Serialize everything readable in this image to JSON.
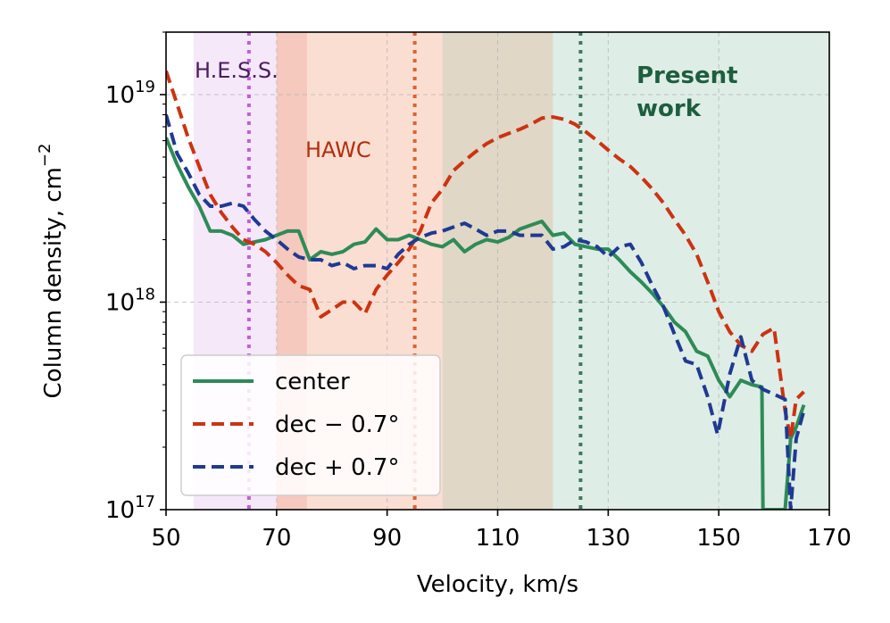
{
  "chart_data": {
    "type": "line",
    "title": "",
    "xlabel": "Velocity, km/s",
    "ylabel": "Column density, cm",
    "ylabel_exponent": "−2",
    "xlim": [
      50,
      170
    ],
    "ylim": [
      1e+17,
      2e+19
    ],
    "yscale": "log",
    "grid": true,
    "x_ticks": [
      {
        "value": 50,
        "label": "50"
      },
      {
        "value": 70,
        "label": "70"
      },
      {
        "value": 90,
        "label": "90"
      },
      {
        "value": 110,
        "label": "110"
      },
      {
        "value": 130,
        "label": "130"
      },
      {
        "value": 150,
        "label": "150"
      },
      {
        "value": 170,
        "label": "170"
      }
    ],
    "y_ticks": [
      {
        "value": 1e+17,
        "base": "10",
        "exp": "17"
      },
      {
        "value": 1e+18,
        "base": "10",
        "exp": "18"
      },
      {
        "value": 1e+19,
        "base": "10",
        "exp": "19"
      }
    ],
    "bands": [
      {
        "name": "hess",
        "x0": 55,
        "x1": 70,
        "color": "#c77dde",
        "opacity": 0.18
      },
      {
        "name": "hawc",
        "x0": 70,
        "x1": 100,
        "color": "#f08a5d",
        "opacity": 0.28
      },
      {
        "name": "hawc-inner",
        "x0": 70,
        "x1": 75.5,
        "color": "#e05050",
        "opacity": 0.15
      },
      {
        "name": "overlap",
        "x0": 100,
        "x1": 120,
        "color": "#b5a07a",
        "opacity": 0.42
      },
      {
        "name": "present",
        "x0": 120,
        "x1": 170,
        "color": "#4f9a78",
        "opacity": 0.18
      }
    ],
    "vlines": [
      {
        "name": "hess-line",
        "x": 65,
        "color": "#c060d8"
      },
      {
        "name": "hawc-line",
        "x": 95,
        "color": "#e06030"
      },
      {
        "name": "present-line",
        "x": 125,
        "color": "#3d7a5c"
      }
    ],
    "region_labels": [
      {
        "name": "hess-label",
        "text": "H.E.S.S.",
        "color": "#4a1d5e"
      },
      {
        "name": "hawc-label",
        "text": "HAWC",
        "color": "#b32d0e"
      },
      {
        "name": "present-label-1",
        "text": "Present",
        "color": "#1d5e3e"
      },
      {
        "name": "present-label-2",
        "text": "work",
        "color": "#1d5e3e"
      }
    ],
    "series": [
      {
        "name": "center",
        "label": "center",
        "color": "#2e8b57",
        "dash": "solid",
        "x": [
          50,
          52,
          54,
          56,
          58,
          60,
          62,
          64,
          66,
          68,
          70,
          72,
          74,
          76,
          78,
          80,
          82,
          84,
          86,
          88,
          90,
          92,
          94,
          96,
          98,
          100,
          102,
          104,
          106,
          108,
          110,
          112,
          114,
          116,
          118,
          120,
          122,
          124,
          126,
          128,
          130,
          132,
          134,
          136,
          138,
          140,
          142,
          144,
          146,
          148,
          150,
          152,
          154,
          156,
          157.8,
          158,
          160,
          162,
          163,
          164,
          165.4
        ],
        "y": [
          6.2e+18,
          4.6e+18,
          3.6e+18,
          2.9e+18,
          2.2e+18,
          2.2e+18,
          2.1e+18,
          1.9e+18,
          1.95e+18,
          2e+18,
          2.1e+18,
          2.2e+18,
          2.2e+18,
          1.6e+18,
          1.75e+18,
          1.7e+18,
          1.75e+18,
          1.9e+18,
          1.95e+18,
          2.25e+18,
          2e+18,
          2e+18,
          2.1e+18,
          2e+18,
          1.9e+18,
          1.85e+18,
          2e+18,
          1.75e+18,
          1.9e+18,
          2e+18,
          1.95e+18,
          2.05e+18,
          2.25e+18,
          2.35e+18,
          2.45e+18,
          2.1e+18,
          2.15e+18,
          1.9e+18,
          1.85e+18,
          1.8e+18,
          1.8e+18,
          1.6e+18,
          1.4e+18,
          1.25e+18,
          1.1e+18,
          9.5e+17,
          8e+17,
          7.2e+17,
          5.8e+17,
          5.5e+17,
          4.2e+17,
          3.5e+17,
          4.2e+17,
          4e+17,
          3.9e+17,
          1e+17,
          1e+17,
          1e+17,
          2.2e+17,
          2.5e+17,
          3.2e+17
        ]
      },
      {
        "name": "dec-minus",
        "label": "dec − 0.7°",
        "color": "#cc3311",
        "dash": "dashed",
        "x": [
          50,
          52,
          54,
          56,
          58,
          60,
          62,
          64,
          66,
          68,
          70,
          72,
          74,
          76,
          78,
          80,
          82,
          84,
          86,
          88,
          90,
          92,
          94,
          96,
          98,
          100,
          102,
          104,
          106,
          108,
          110,
          112,
          114,
          116,
          118,
          120,
          122,
          124,
          126,
          128,
          130,
          132,
          134,
          136,
          138,
          140,
          142,
          144,
          146,
          148,
          150,
          152,
          154,
          156,
          158,
          160,
          162,
          163,
          164,
          165.4
        ],
        "y": [
          1.3e+19,
          9e+18,
          6.2e+18,
          4.5e+18,
          3.3e+18,
          2.7e+18,
          2.3e+18,
          2e+18,
          1.9e+18,
          1.75e+18,
          1.55e+18,
          1.35e+18,
          1.2e+18,
          1.15e+18,
          8.5e+17,
          9.2e+17,
          1e+18,
          1e+18,
          8.8e+17,
          1.15e+18,
          1.35e+18,
          1.55e+18,
          1.8e+18,
          2.2e+18,
          3e+18,
          3.5e+18,
          4.3e+18,
          4.8e+18,
          5.3e+18,
          5.8e+18,
          6.2e+18,
          6.5e+18,
          6.8e+18,
          7.2e+18,
          7.7e+18,
          7.8e+18,
          7.6e+18,
          7.2e+18,
          6.6e+18,
          6e+18,
          5.4e+18,
          4.9e+18,
          4.5e+18,
          4e+18,
          3.5e+18,
          3e+18,
          2.5e+18,
          2.1e+18,
          1.7e+18,
          1.25e+18,
          9e+17,
          7.2e+17,
          6.2e+17,
          5.8e+17,
          7e+17,
          7.5e+17,
          3e+17,
          2.2e+17,
          3.4e+17,
          3.7e+17
        ]
      },
      {
        "name": "dec-plus",
        "label": "dec + 0.7°",
        "color": "#1f3a93",
        "dash": "dashed",
        "x": [
          50,
          52,
          54,
          56,
          58,
          60,
          62,
          64,
          66,
          68,
          70,
          72,
          74,
          76,
          78,
          80,
          82,
          84,
          86,
          88,
          90,
          92,
          94,
          96,
          98,
          100,
          102,
          104,
          106,
          108,
          110,
          112,
          114,
          116,
          118,
          120,
          122,
          124,
          126,
          128,
          130,
          132,
          134,
          136,
          138,
          140,
          142,
          144,
          146,
          148,
          149.8,
          152,
          154,
          156,
          158,
          160,
          162,
          163,
          164,
          165.4
        ],
        "y": [
          8e+18,
          5.2e+18,
          4.2e+18,
          3.3e+18,
          2.9e+18,
          2.9e+18,
          3e+18,
          2.9e+18,
          2.5e+18,
          2.2e+18,
          2e+18,
          1.8e+18,
          1.65e+18,
          1.6e+18,
          1.6e+18,
          1.5e+18,
          1.55e+18,
          1.45e+18,
          1.5e+18,
          1.5e+18,
          1.45e+18,
          1.7e+18,
          1.9e+18,
          2.05e+18,
          2.15e+18,
          2.2e+18,
          2.3e+18,
          2.4e+18,
          2.25e+18,
          2.1e+18,
          2.2e+18,
          2.2e+18,
          2.1e+18,
          2.1e+18,
          2.1e+18,
          1.8e+18,
          1.85e+18,
          2e+18,
          1.95e+18,
          1.85e+18,
          1.65e+18,
          1.85e+18,
          1.9e+18,
          1.55e+18,
          1.2e+18,
          9.5e+17,
          7e+17,
          5.2e+17,
          5e+17,
          3.5e+17,
          2.3e+17,
          4.5e+17,
          6.8e+17,
          4.2e+17,
          3.8e+17,
          3.6e+17,
          3.4e+17,
          1e+17,
          2.2e+17,
          3e+17
        ]
      }
    ],
    "legend": {
      "position": "lower-left"
    }
  }
}
